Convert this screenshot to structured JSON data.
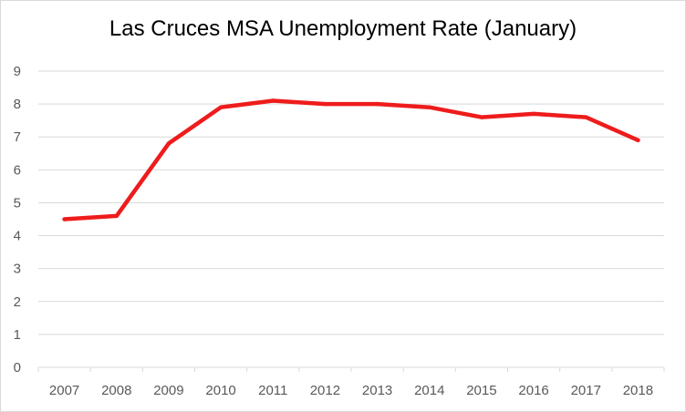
{
  "chart_data": {
    "type": "line",
    "title": "Las Cruces MSA Unemployment Rate (January)",
    "xlabel": "",
    "ylabel": "",
    "categories": [
      "2007",
      "2008",
      "2009",
      "2010",
      "2011",
      "2012",
      "2013",
      "2014",
      "2015",
      "2016",
      "2017",
      "2018"
    ],
    "series": [
      {
        "values": [
          4.5,
          4.6,
          6.8,
          7.9,
          8.1,
          8.0,
          8.0,
          7.9,
          7.6,
          7.7,
          7.6,
          6.9
        ]
      }
    ],
    "ylim": [
      0,
      9
    ],
    "yticks": [
      0,
      1,
      2,
      3,
      4,
      5,
      6,
      7,
      8,
      9
    ],
    "grid": true,
    "legend": "none",
    "line_color": "#ee1c1c",
    "grid_color": "#d9d9d9"
  }
}
